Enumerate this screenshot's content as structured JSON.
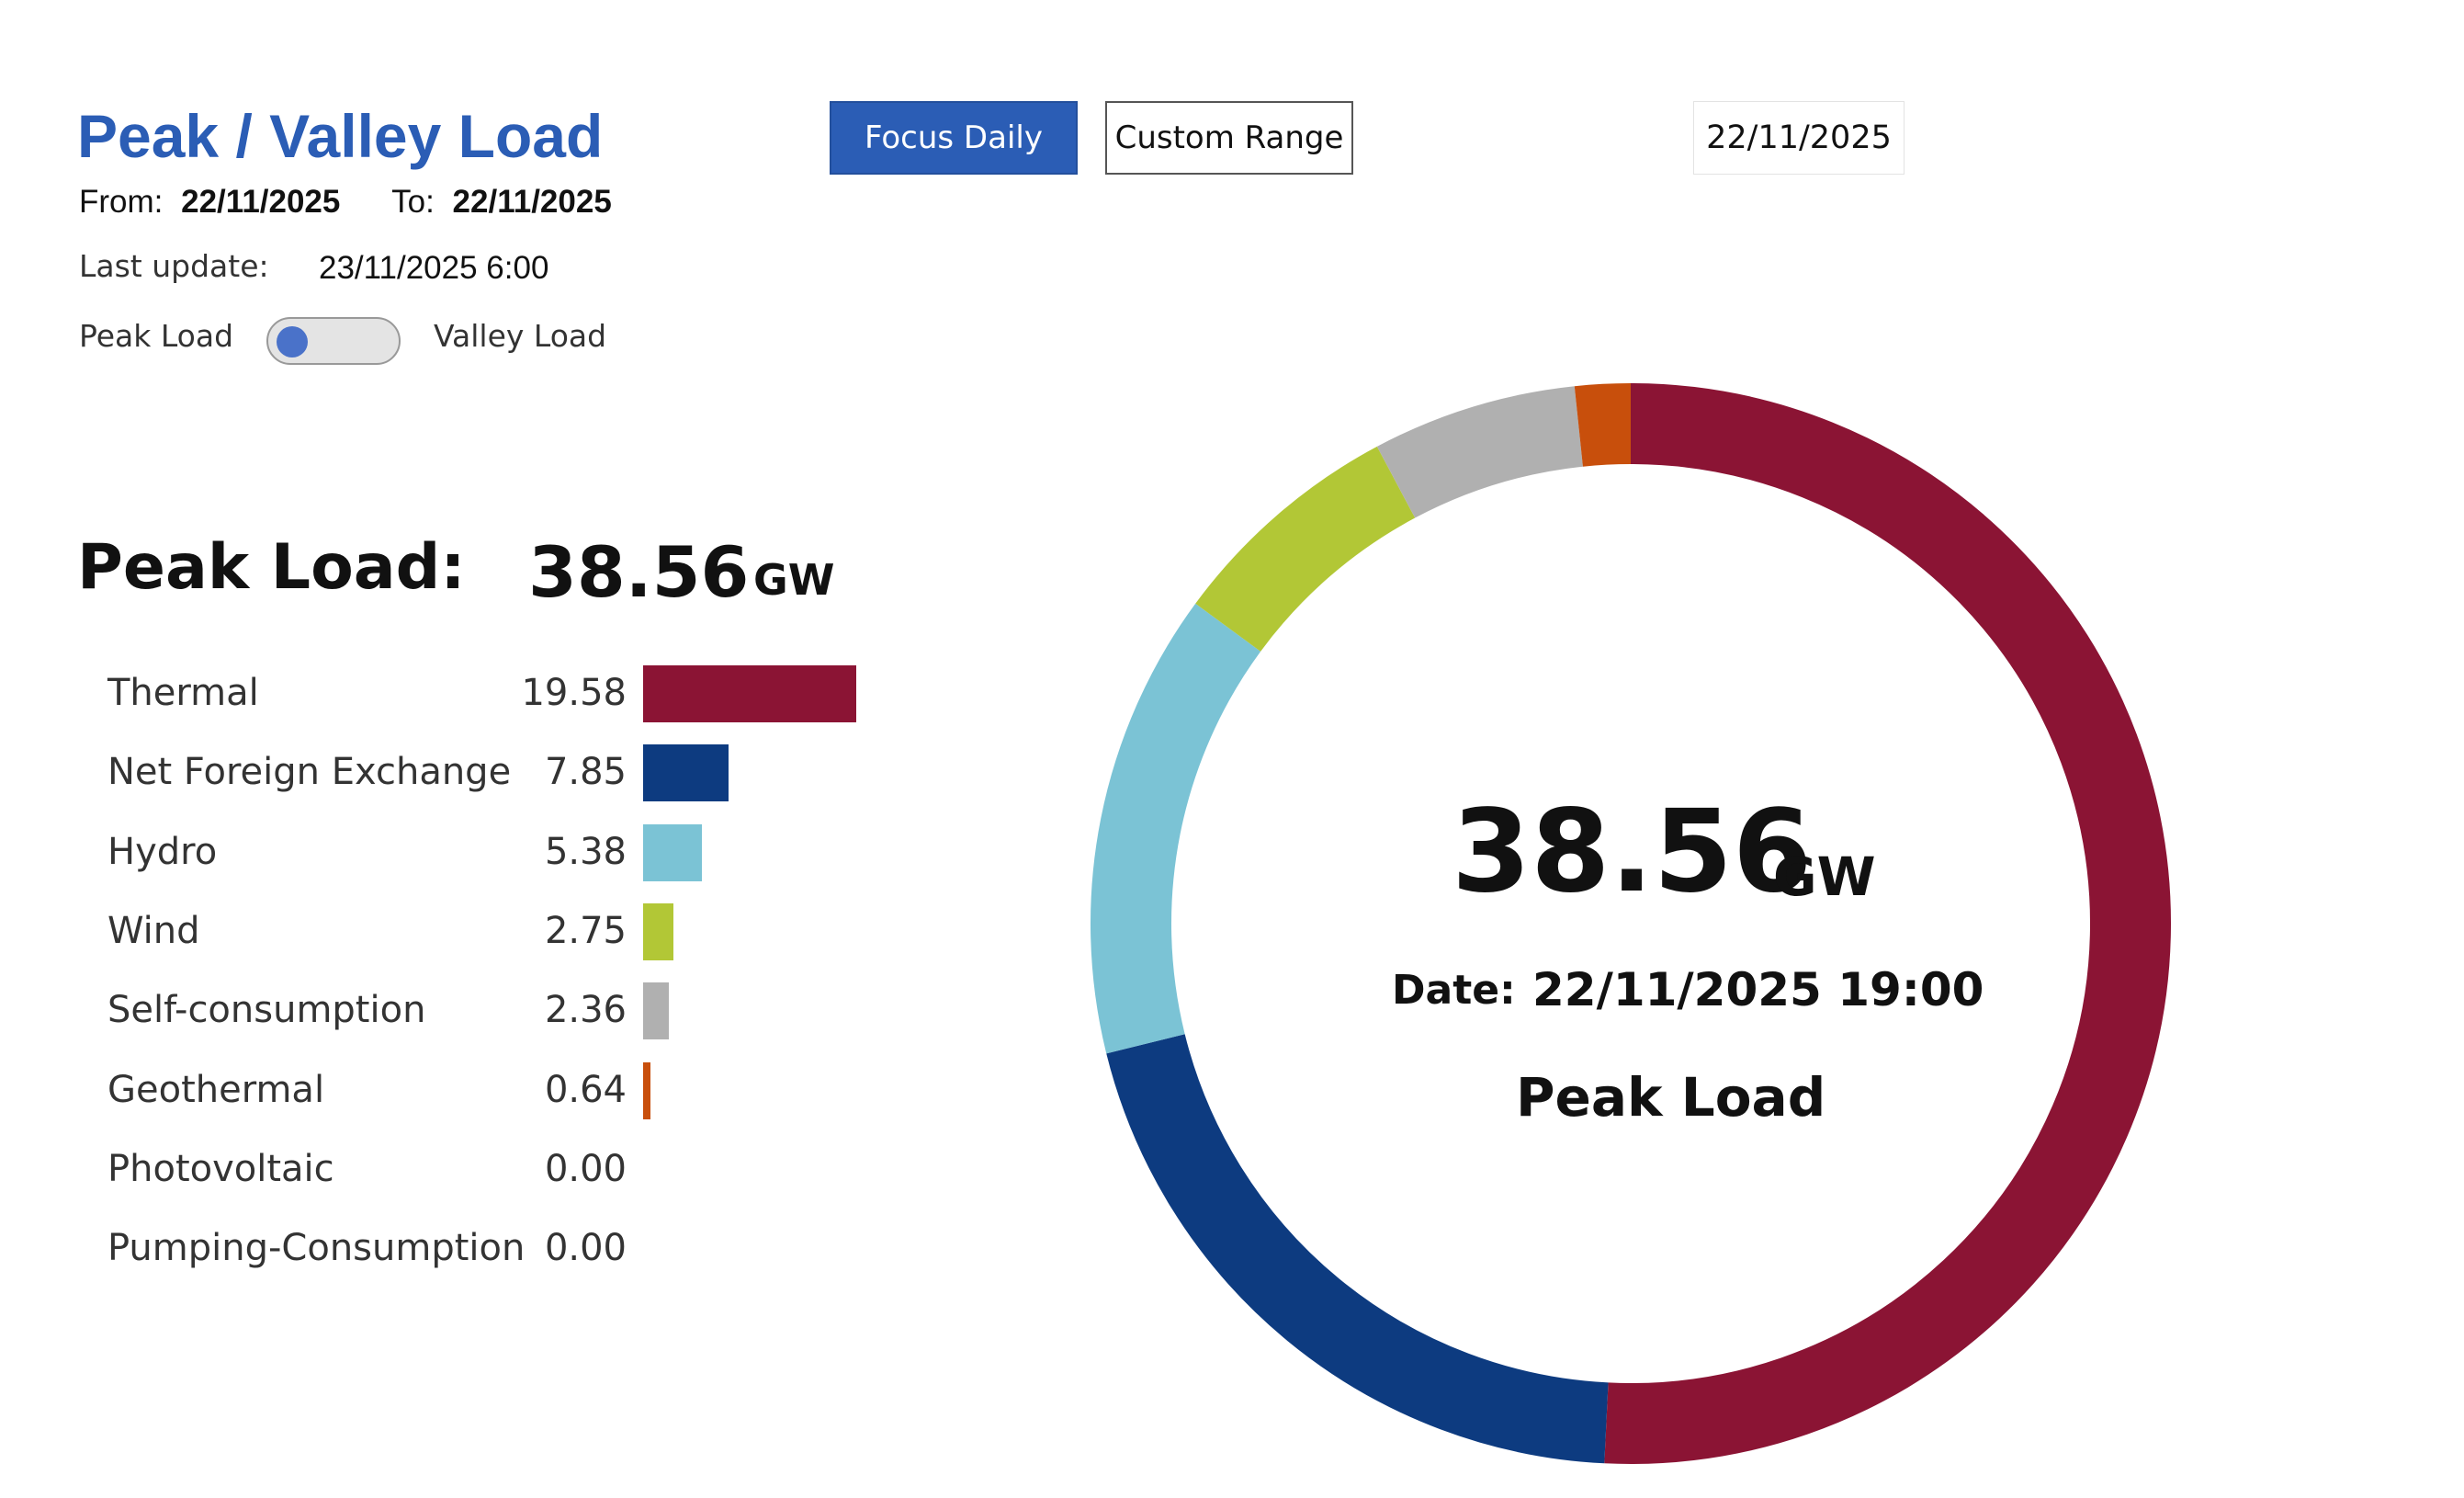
{
  "header": {
    "title": "Peak / Valley Load",
    "from_label": "From:",
    "from_value": "22/11/2025",
    "to_label": "To:",
    "to_value": "22/11/2025",
    "last_update_label": "Last update:",
    "last_update_value": "23/11/2025 6:00"
  },
  "controls": {
    "focus_daily": "Focus Daily",
    "custom_range": "Custom Range",
    "date_value": "22/11/2025",
    "toggle_left": "Peak Load",
    "toggle_right": "Valley Load"
  },
  "summary": {
    "label": "Peak Load:",
    "value": "38.56",
    "unit": "GW"
  },
  "center": {
    "value": "38.56",
    "unit": "GW",
    "date_label": "Date:",
    "date_value": "22/11/2025 19:00",
    "label": "Peak Load"
  },
  "chart_data": [
    {
      "type": "bar",
      "orientation": "horizontal",
      "categories": [
        "Thermal",
        "Net Foreign Exchange",
        "Hydro",
        "Wind",
        "Self-consumption",
        "Geothermal",
        "Photovoltaic",
        "Pumping-Consumption"
      ],
      "values": [
        19.58,
        7.85,
        5.38,
        2.75,
        2.36,
        0.64,
        0.0,
        0.0
      ],
      "labels": [
        "19.58",
        "7.85",
        "5.38",
        "2.75",
        "2.36",
        "0.64",
        "0.00",
        "0.00"
      ],
      "colors": [
        "#8b1434",
        "#0d3b80",
        "#7bc3d5",
        "#b2c736",
        "#b0b0b0",
        "#c84f0c",
        "#e8b84a",
        "#666666"
      ]
    },
    {
      "type": "pie",
      "donut": true,
      "categories": [
        "Thermal",
        "Net Foreign Exchange",
        "Hydro",
        "Wind",
        "Self-consumption",
        "Geothermal",
        "Photovoltaic",
        "Pumping-Consumption"
      ],
      "values": [
        19.58,
        7.85,
        5.38,
        2.75,
        2.36,
        0.64,
        0.0,
        0.0
      ],
      "colors": [
        "#8b1434",
        "#0d3b80",
        "#7bc3d5",
        "#b2c736",
        "#b0b0b0",
        "#c84f0c",
        "#e8b84a",
        "#666666"
      ],
      "start": "top",
      "direction": "clockwise"
    }
  ]
}
